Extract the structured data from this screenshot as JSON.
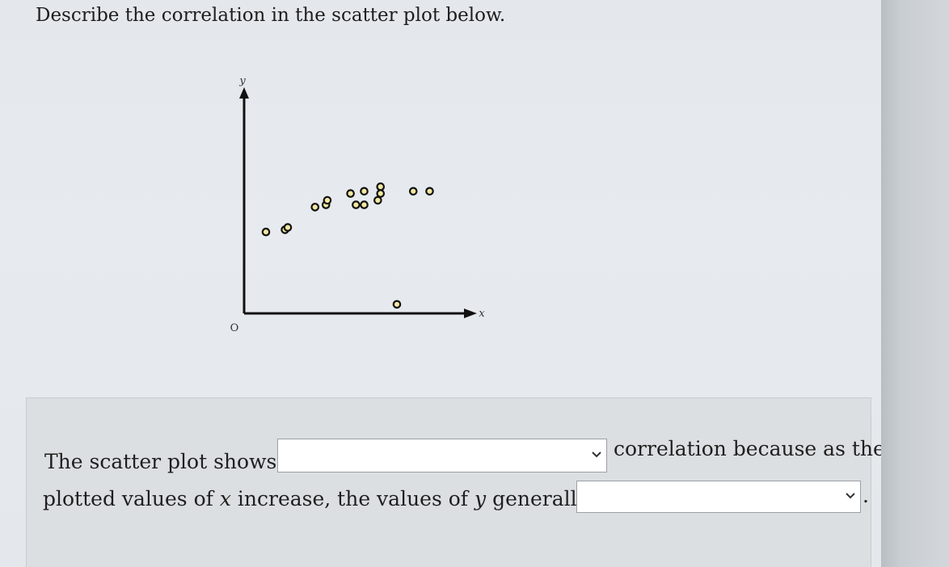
{
  "question": {
    "text": "Describe the correlation in the scatter plot below."
  },
  "chart_data": {
    "type": "scatter",
    "xlabel": "x",
    "ylabel": "y",
    "origin_label": "O",
    "grid": false,
    "points": [
      {
        "x": 0.8,
        "y": 3.6
      },
      {
        "x": 1.5,
        "y": 3.7
      },
      {
        "x": 1.6,
        "y": 3.8
      },
      {
        "x": 2.6,
        "y": 4.7
      },
      {
        "x": 3.0,
        "y": 4.8
      },
      {
        "x": 3.05,
        "y": 5.0
      },
      {
        "x": 3.9,
        "y": 5.3
      },
      {
        "x": 4.1,
        "y": 4.8
      },
      {
        "x": 4.4,
        "y": 5.4
      },
      {
        "x": 4.4,
        "y": 4.8
      },
      {
        "x": 4.9,
        "y": 5.0
      },
      {
        "x": 5.0,
        "y": 5.6
      },
      {
        "x": 5.0,
        "y": 5.3
      },
      {
        "x": 6.2,
        "y": 5.4
      },
      {
        "x": 6.8,
        "y": 5.4
      },
      {
        "x": 5.6,
        "y": 0.4
      }
    ],
    "xlim": [
      0,
      8
    ],
    "ylim": [
      0,
      10
    ]
  },
  "answer": {
    "line1_prefix": "The scatter plot shows",
    "line1_suffix": "correlation because as the",
    "line2_prefix": "plotted values of",
    "line2_var_x": "x",
    "line2_mid": "increase, the values of",
    "line2_var_y": "y",
    "line2_after": "generally",
    "period": ".",
    "dropdown1_value": "",
    "dropdown2_value": "",
    "chevron_icon": "chevron-down-icon"
  }
}
